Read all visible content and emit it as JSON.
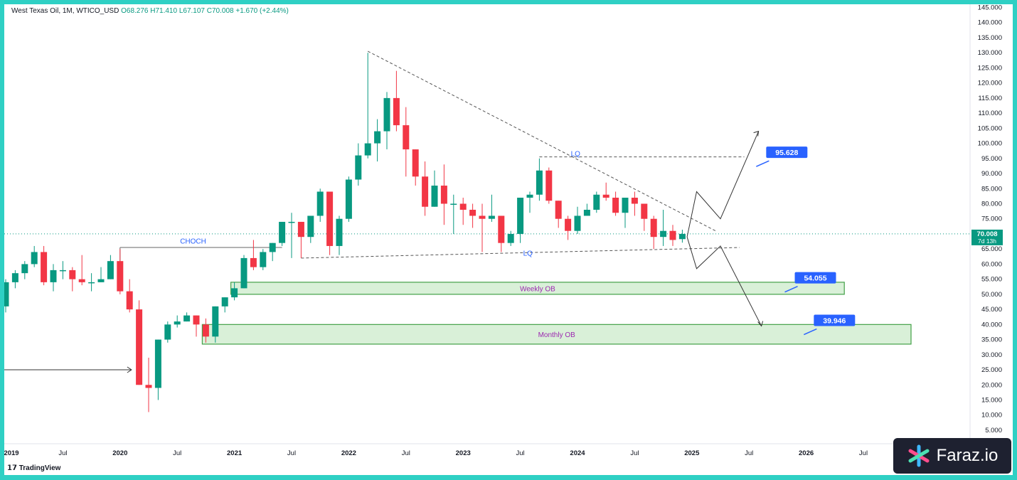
{
  "header": {
    "symbol": "West Texas Oil, 1M, WTICO_USD",
    "ohlc": "O68.276 H71.410 L67.107 C70.008",
    "change": "+1.670 (+2.44%)"
  },
  "branding": {
    "tradingview": "TradingView",
    "watermark": "Faraz.io"
  },
  "colors": {
    "up": "#089981",
    "down": "#f23645",
    "ob_fill": "#d9f0d8",
    "ob_stroke": "#43a047",
    "callout": "#2962ff",
    "text_purple": "#9c27b0",
    "text_blue": "#2962ff"
  },
  "chart_data": {
    "type": "candlestick",
    "title": "West Texas Oil, 1M, WTICO_USD",
    "ylim": [
      0,
      145
    ],
    "y_ticks": [
      "145.000",
      "140.000",
      "135.000",
      "130.000",
      "125.000",
      "120.000",
      "115.000",
      "110.000",
      "105.000",
      "100.000",
      "95.000",
      "90.000",
      "85.000",
      "80.000",
      "75.000",
      "70.000",
      "65.000",
      "60.000",
      "55.000",
      "50.000",
      "45.000",
      "40.000",
      "35.000",
      "30.000",
      "25.000",
      "20.000",
      "15.000",
      "10.000",
      "5.000"
    ],
    "x_ticks": [
      {
        "label": "2019",
        "date": "2019-01"
      },
      {
        "label": "Jul",
        "date": "2019-07"
      },
      {
        "label": "2020",
        "date": "2020-01"
      },
      {
        "label": "Jul",
        "date": "2020-07"
      },
      {
        "label": "2021",
        "date": "2021-01"
      },
      {
        "label": "Jul",
        "date": "2021-07"
      },
      {
        "label": "2022",
        "date": "2022-01"
      },
      {
        "label": "Jul",
        "date": "2022-07"
      },
      {
        "label": "2023",
        "date": "2023-01"
      },
      {
        "label": "Jul",
        "date": "2023-07"
      },
      {
        "label": "2024",
        "date": "2024-01"
      },
      {
        "label": "Jul",
        "date": "2024-07"
      },
      {
        "label": "2025",
        "date": "2025-01"
      },
      {
        "label": "Jul",
        "date": "2025-07"
      },
      {
        "label": "2026",
        "date": "2026-01"
      },
      {
        "label": "Jul",
        "date": "2026-07"
      }
    ],
    "last_price": {
      "label": "70.008",
      "sub": "7d 13h",
      "value": 70.008
    },
    "candles": [
      {
        "date": "2019-01",
        "o": 46,
        "h": 55,
        "l": 44,
        "c": 54
      },
      {
        "date": "2019-02",
        "o": 54,
        "h": 58,
        "l": 52,
        "c": 57
      },
      {
        "date": "2019-03",
        "o": 57,
        "h": 61,
        "l": 55,
        "c": 60
      },
      {
        "date": "2019-04",
        "o": 60,
        "h": 66,
        "l": 59,
        "c": 64
      },
      {
        "date": "2019-05",
        "o": 64,
        "h": 66,
        "l": 53,
        "c": 54
      },
      {
        "date": "2019-06",
        "o": 54,
        "h": 60,
        "l": 51,
        "c": 58
      },
      {
        "date": "2019-07",
        "o": 58,
        "h": 61,
        "l": 55,
        "c": 58
      },
      {
        "date": "2019-08",
        "o": 58,
        "h": 59,
        "l": 51,
        "c": 55
      },
      {
        "date": "2019-09",
        "o": 55,
        "h": 63,
        "l": 53,
        "c": 54
      },
      {
        "date": "2019-10",
        "o": 54,
        "h": 57,
        "l": 51,
        "c": 54
      },
      {
        "date": "2019-11",
        "o": 54,
        "h": 59,
        "l": 54,
        "c": 55
      },
      {
        "date": "2019-12",
        "o": 55,
        "h": 63,
        "l": 55,
        "c": 61
      },
      {
        "date": "2020-01",
        "o": 61,
        "h": 65,
        "l": 50,
        "c": 51
      },
      {
        "date": "2020-02",
        "o": 51,
        "h": 55,
        "l": 44,
        "c": 45
      },
      {
        "date": "2020-03",
        "o": 45,
        "h": 48,
        "l": 20,
        "c": 20
      },
      {
        "date": "2020-04",
        "o": 20,
        "h": 29,
        "l": 11,
        "c": 19
      },
      {
        "date": "2020-05",
        "o": 19,
        "h": 35,
        "l": 15,
        "c": 35
      },
      {
        "date": "2020-06",
        "o": 35,
        "h": 41,
        "l": 34,
        "c": 40
      },
      {
        "date": "2020-07",
        "o": 40,
        "h": 43,
        "l": 39,
        "c": 41
      },
      {
        "date": "2020-08",
        "o": 41,
        "h": 44,
        "l": 41,
        "c": 43
      },
      {
        "date": "2020-09",
        "o": 43,
        "h": 43,
        "l": 36,
        "c": 40
      },
      {
        "date": "2020-10",
        "o": 40,
        "h": 42,
        "l": 34,
        "c": 36
      },
      {
        "date": "2020-11",
        "o": 36,
        "h": 46,
        "l": 34,
        "c": 46
      },
      {
        "date": "2020-12",
        "o": 46,
        "h": 49,
        "l": 44,
        "c": 49
      },
      {
        "date": "2021-01",
        "o": 49,
        "h": 54,
        "l": 48,
        "c": 52
      },
      {
        "date": "2021-02",
        "o": 52,
        "h": 63,
        "l": 52,
        "c": 62
      },
      {
        "date": "2021-03",
        "o": 62,
        "h": 68,
        "l": 58,
        "c": 59
      },
      {
        "date": "2021-04",
        "o": 59,
        "h": 65,
        "l": 58,
        "c": 64
      },
      {
        "date": "2021-05",
        "o": 64,
        "h": 67,
        "l": 61,
        "c": 67
      },
      {
        "date": "2021-06",
        "o": 67,
        "h": 74,
        "l": 66,
        "c": 74
      },
      {
        "date": "2021-07",
        "o": 74,
        "h": 77,
        "l": 62,
        "c": 74
      },
      {
        "date": "2021-08",
        "o": 74,
        "h": 74,
        "l": 62,
        "c": 69
      },
      {
        "date": "2021-09",
        "o": 69,
        "h": 76,
        "l": 67,
        "c": 76
      },
      {
        "date": "2021-10",
        "o": 76,
        "h": 85,
        "l": 74,
        "c": 84
      },
      {
        "date": "2021-11",
        "o": 84,
        "h": 84,
        "l": 63,
        "c": 66
      },
      {
        "date": "2021-12",
        "o": 66,
        "h": 76,
        "l": 63,
        "c": 75
      },
      {
        "date": "2022-01",
        "o": 75,
        "h": 89,
        "l": 74,
        "c": 88
      },
      {
        "date": "2022-02",
        "o": 88,
        "h": 100,
        "l": 86,
        "c": 96
      },
      {
        "date": "2022-03",
        "o": 96,
        "h": 130,
        "l": 95,
        "c": 100
      },
      {
        "date": "2022-04",
        "o": 100,
        "h": 108,
        "l": 94,
        "c": 104
      },
      {
        "date": "2022-05",
        "o": 104,
        "h": 117,
        "l": 98,
        "c": 115
      },
      {
        "date": "2022-06",
        "o": 115,
        "h": 124,
        "l": 104,
        "c": 106
      },
      {
        "date": "2022-07",
        "o": 106,
        "h": 112,
        "l": 89,
        "c": 98
      },
      {
        "date": "2022-08",
        "o": 98,
        "h": 98,
        "l": 86,
        "c": 89
      },
      {
        "date": "2022-09",
        "o": 89,
        "h": 94,
        "l": 76,
        "c": 79
      },
      {
        "date": "2022-10",
        "o": 79,
        "h": 91,
        "l": 79,
        "c": 86
      },
      {
        "date": "2022-11",
        "o": 86,
        "h": 93,
        "l": 73,
        "c": 80
      },
      {
        "date": "2022-12",
        "o": 80,
        "h": 83,
        "l": 70,
        "c": 80
      },
      {
        "date": "2023-01",
        "o": 80,
        "h": 82,
        "l": 73,
        "c": 78
      },
      {
        "date": "2023-02",
        "o": 78,
        "h": 80,
        "l": 72,
        "c": 76
      },
      {
        "date": "2023-03",
        "o": 76,
        "h": 80,
        "l": 64,
        "c": 75
      },
      {
        "date": "2023-04",
        "o": 75,
        "h": 83,
        "l": 74,
        "c": 76
      },
      {
        "date": "2023-05",
        "o": 76,
        "h": 76,
        "l": 64,
        "c": 67
      },
      {
        "date": "2023-06",
        "o": 67,
        "h": 71,
        "l": 66,
        "c": 70
      },
      {
        "date": "2023-07",
        "o": 70,
        "h": 82,
        "l": 67,
        "c": 82
      },
      {
        "date": "2023-08",
        "o": 82,
        "h": 84,
        "l": 77,
        "c": 83
      },
      {
        "date": "2023-09",
        "o": 83,
        "h": 95,
        "l": 81,
        "c": 91
      },
      {
        "date": "2023-10",
        "o": 91,
        "h": 92,
        "l": 80,
        "c": 81
      },
      {
        "date": "2023-11",
        "o": 81,
        "h": 81,
        "l": 72,
        "c": 75
      },
      {
        "date": "2023-12",
        "o": 75,
        "h": 76,
        "l": 68,
        "c": 71
      },
      {
        "date": "2024-01",
        "o": 71,
        "h": 79,
        "l": 70,
        "c": 76
      },
      {
        "date": "2024-02",
        "o": 76,
        "h": 80,
        "l": 76,
        "c": 78
      },
      {
        "date": "2024-03",
        "o": 78,
        "h": 84,
        "l": 77,
        "c": 83
      },
      {
        "date": "2024-04",
        "o": 83,
        "h": 87,
        "l": 81,
        "c": 82
      },
      {
        "date": "2024-05",
        "o": 82,
        "h": 84,
        "l": 76,
        "c": 77
      },
      {
        "date": "2024-06",
        "o": 77,
        "h": 82,
        "l": 72,
        "c": 82
      },
      {
        "date": "2024-07",
        "o": 82,
        "h": 84,
        "l": 76,
        "c": 80
      },
      {
        "date": "2024-08",
        "o": 80,
        "h": 80,
        "l": 71,
        "c": 75
      },
      {
        "date": "2024-09",
        "o": 75,
        "h": 76,
        "l": 65,
        "c": 69
      },
      {
        "date": "2024-10",
        "o": 69,
        "h": 78,
        "l": 66,
        "c": 71
      },
      {
        "date": "2024-11",
        "o": 71,
        "h": 73,
        "l": 66,
        "c": 68
      },
      {
        "date": "2024-12",
        "o": 68.276,
        "h": 71.41,
        "l": 67.107,
        "c": 70.008
      }
    ],
    "zones": [
      {
        "label": "Weekly OB",
        "from": "2021-01",
        "to": "2026-05",
        "low": 50,
        "high": 54
      },
      {
        "label": "Monthly OB",
        "from": "2020-10",
        "to": "2026-12",
        "low": 33.5,
        "high": 40
      }
    ],
    "callouts": [
      {
        "label": "95.628",
        "value": 95.628
      },
      {
        "label": "54.055",
        "value": 54.055
      },
      {
        "label": "39.946",
        "value": 39.946
      }
    ],
    "annotations": [
      {
        "text": "CHOCH",
        "date": "2020-07",
        "value": 67.5
      },
      {
        "text": "LQ",
        "date": "2023-12",
        "value": 96.5
      },
      {
        "text": "LQ",
        "date": "2023-07",
        "value": 63.5
      }
    ]
  }
}
